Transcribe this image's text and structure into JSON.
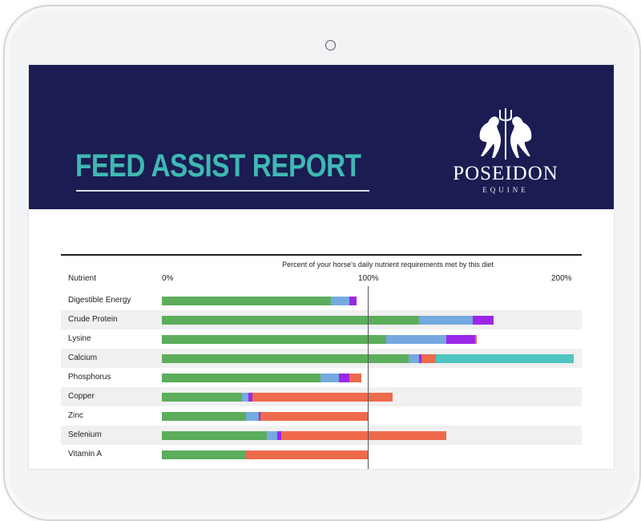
{
  "report": {
    "title": "FEED ASSIST REPORT"
  },
  "brand": {
    "name": "POSEIDON",
    "subname": "EQUINE",
    "banner_color": "#1a1c52",
    "title_color": "#3fb8b3"
  },
  "table": {
    "column_nutrient": "Nutrient",
    "caption": "Percent of your horse's daily nutrient requirements met by this diet"
  },
  "chart_data": {
    "type": "bar",
    "orientation": "horizontal",
    "stacked": true,
    "title": "Percent of your horse's daily nutrient requirements met by this diet",
    "xlim": [
      0,
      200
    ],
    "ticks": [
      {
        "value": 0,
        "label": "0%"
      },
      {
        "value": 100,
        "label": "100%"
      },
      {
        "value": 200,
        "label": "200%"
      }
    ],
    "reference_line": 100,
    "segment_colors": [
      "#5cad5c",
      "#76a9e0",
      "#9b27e8",
      "#ee6a4d",
      "#4fc4c0"
    ],
    "categories": [
      {
        "label": "Digestible Energy",
        "segments": [
          82,
          9,
          3.5
        ]
      },
      {
        "label": "Crude Protein",
        "segments": [
          125,
          26,
          10
        ]
      },
      {
        "label": "Lysine",
        "segments": [
          109,
          29,
          14,
          1
        ]
      },
      {
        "label": "Calcium",
        "segments": [
          120,
          5,
          1,
          7,
          67
        ]
      },
      {
        "label": "Phosphorus",
        "segments": [
          77,
          9,
          5,
          6
        ]
      },
      {
        "label": "Copper",
        "segments": [
          39,
          3,
          2,
          68
        ]
      },
      {
        "label": "Zinc",
        "segments": [
          41,
          6,
          1,
          52
        ]
      },
      {
        "label": "Selenium",
        "segments": [
          51,
          5,
          2,
          80
        ]
      },
      {
        "label": "Vitamin A",
        "segments": [
          41,
          0,
          0,
          59
        ]
      }
    ]
  }
}
